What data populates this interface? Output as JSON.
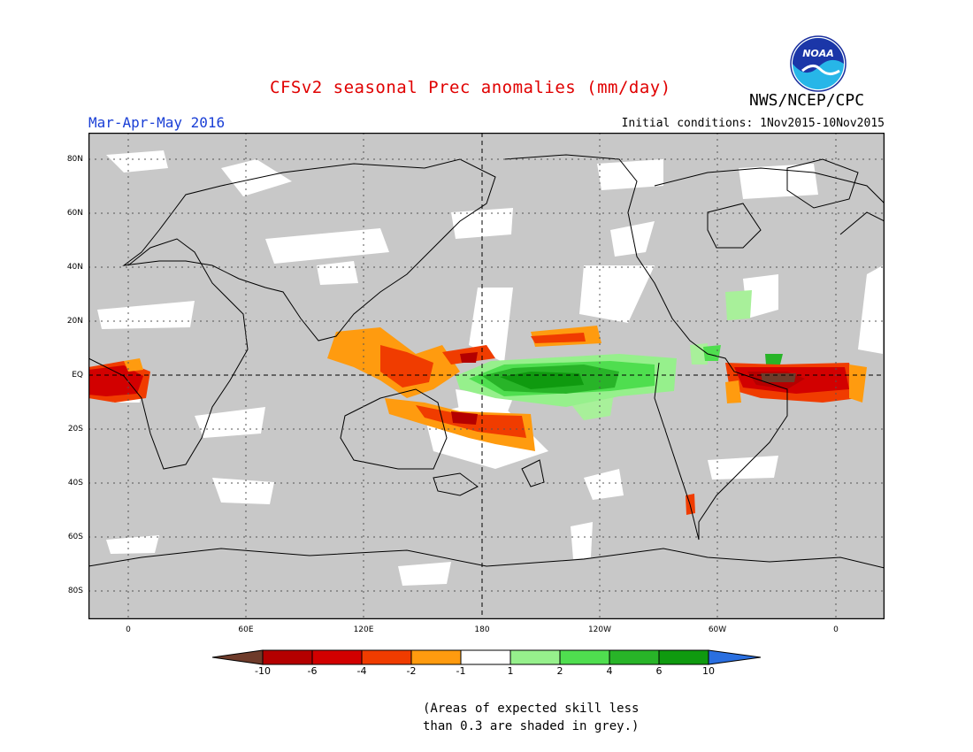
{
  "header": {
    "title": "CFSv2 seasonal Prec anomalies (mm/day)",
    "agency": "NWS/NCEP/CPC",
    "logo_text": "NOAA",
    "season": "Mar-Apr-May 2016",
    "initial_conditions": "Initial conditions: 1Nov2015-10Nov2015"
  },
  "map": {
    "lat_labels": [
      "80N",
      "60N",
      "40N",
      "20N",
      "EQ",
      "20S",
      "40S",
      "60S",
      "80S"
    ],
    "lon_labels": [
      "0",
      "60E",
      "120E",
      "180",
      "120W",
      "60W",
      "0"
    ],
    "background_color": "#c8c8c8"
  },
  "colorbar": {
    "ticks": [
      "-10",
      "-6",
      "-4",
      "-2",
      "-1",
      "1",
      "2",
      "4",
      "6",
      "10"
    ],
    "colors": [
      "#6e3b2a",
      "#b40000",
      "#d20000",
      "#f03c00",
      "#ff9b0f",
      "#ffffff",
      "#96f08c",
      "#4fde4f",
      "#28b428",
      "#0f9a0f",
      "#2a6fe0"
    ]
  },
  "footnote": {
    "line1": "(Areas of expected skill less",
    "line2": "than 0.3 are shaded in grey.)"
  }
}
